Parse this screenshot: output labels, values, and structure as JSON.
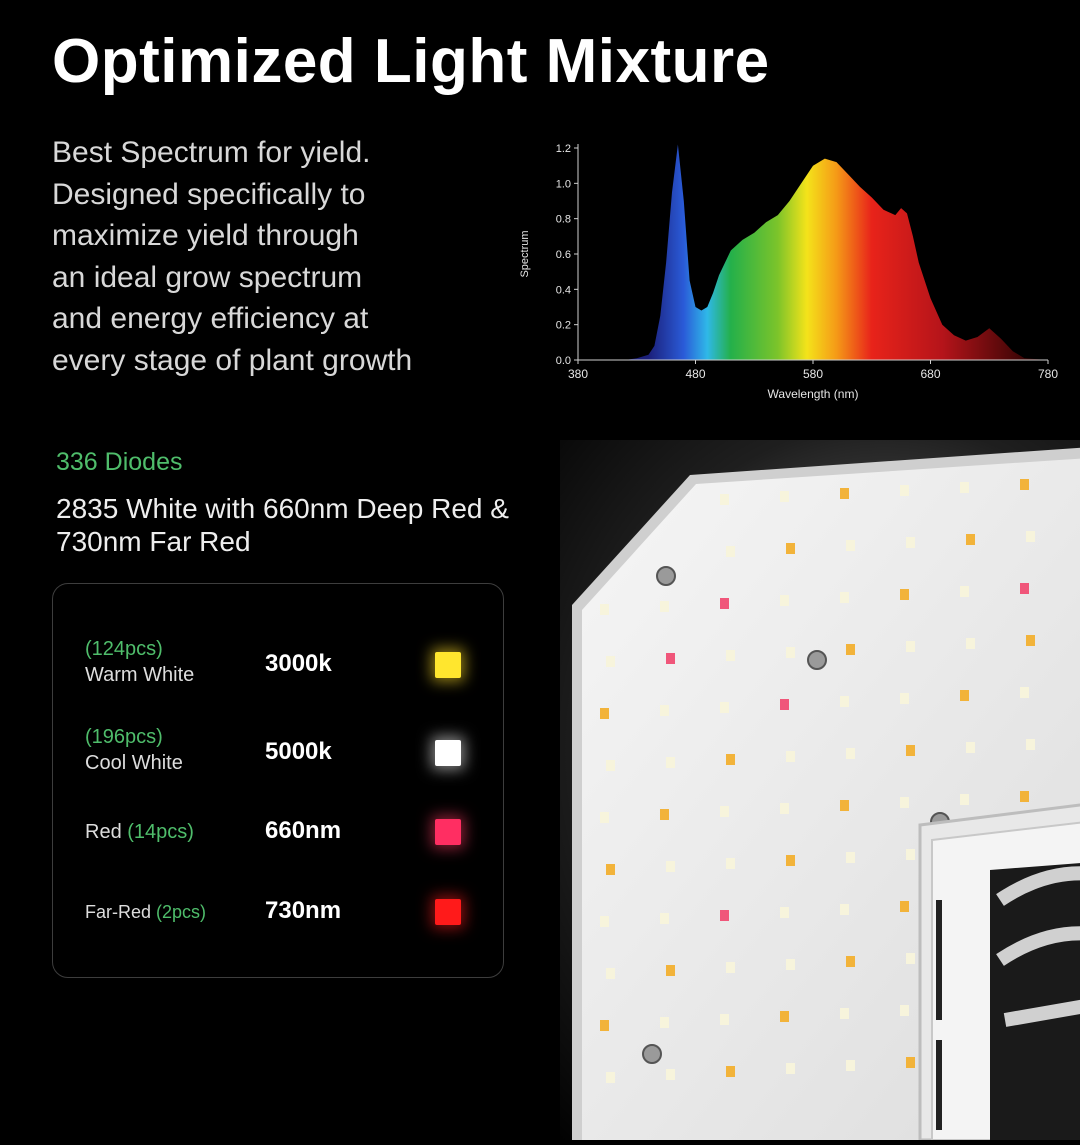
{
  "title": "Optimized Light Mixture",
  "description": [
    "Best Spectrum for yield.",
    "Designed specifically to",
    "maximize yield through",
    "an ideal grow spectrum",
    "and energy efficiency at",
    "every stage of plant growth"
  ],
  "diodes": {
    "count_label": "336 Diodes",
    "description": [
      "2835 White with 660nm Deep Red &",
      "730nm Far Red"
    ]
  },
  "legend": [
    {
      "count": "(124pcs)",
      "name": "Warm White",
      "value": "3000k",
      "color": "#ffe62e"
    },
    {
      "count": "(196pcs)",
      "name": "Cool White",
      "value": "5000k",
      "color": "#ffffff"
    },
    {
      "count": "(14pcs)",
      "name": "Red",
      "value": "660nm",
      "color": "#ff2e62"
    },
    {
      "count": "(2pcs)",
      "name": "Far-Red",
      "value": "730nm",
      "color": "#ff1a1a"
    }
  ],
  "chart_data": {
    "type": "area",
    "xlabel": "Wavelength (nm)",
    "ylabel": "Spectrum",
    "xlim": [
      380,
      780
    ],
    "ylim": [
      0,
      1.2
    ],
    "x_ticks": [
      "380",
      "480",
      "580",
      "680",
      "780"
    ],
    "y_ticks": [
      "0.0",
      "0.2",
      "0.4",
      "0.6",
      "0.8",
      "1.0",
      "1.2"
    ],
    "x": [
      380,
      400,
      420,
      430,
      440,
      445,
      450,
      455,
      460,
      465,
      470,
      475,
      480,
      485,
      490,
      495,
      500,
      510,
      520,
      530,
      540,
      550,
      560,
      570,
      580,
      590,
      600,
      610,
      620,
      630,
      640,
      650,
      655,
      660,
      665,
      670,
      680,
      690,
      700,
      710,
      720,
      730,
      740,
      750,
      760,
      780
    ],
    "values": [
      0,
      0,
      0,
      0.01,
      0.03,
      0.08,
      0.25,
      0.55,
      0.95,
      1.22,
      0.9,
      0.45,
      0.3,
      0.28,
      0.3,
      0.38,
      0.48,
      0.62,
      0.68,
      0.72,
      0.78,
      0.82,
      0.9,
      1.0,
      1.1,
      1.14,
      1.12,
      1.05,
      0.98,
      0.92,
      0.85,
      0.82,
      0.86,
      0.83,
      0.7,
      0.55,
      0.35,
      0.2,
      0.14,
      0.11,
      0.13,
      0.18,
      0.12,
      0.05,
      0.01,
      0
    ]
  }
}
